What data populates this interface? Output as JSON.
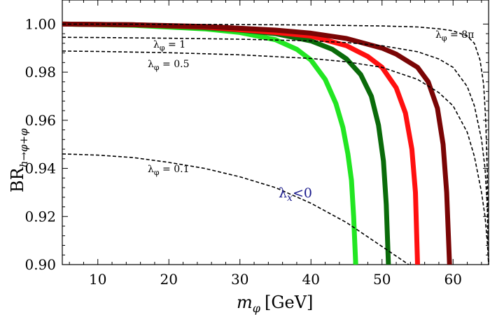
{
  "chart_data": {
    "type": "line",
    "xlabel_symbol": "m",
    "xlabel_sub": "φ",
    "xlabel_unit": "[GeV]",
    "ylabel_main": "BR",
    "ylabel_sub": "h→φ+φ",
    "xlim": [
      5,
      65
    ],
    "ylim": [
      0.9,
      1.01
    ],
    "x_ticks": [
      10,
      20,
      30,
      40,
      50,
      60
    ],
    "y_ticks": [
      0.9,
      0.92,
      0.94,
      0.96,
      0.98,
      1.0
    ],
    "x_tick_labels": [
      "10",
      "20",
      "30",
      "40",
      "50",
      "60"
    ],
    "y_tick_labels": [
      "0.90",
      "0.92",
      "0.94",
      "0.96",
      "0.98",
      "1.00"
    ],
    "annotation": {
      "text_main": "λ",
      "text_sub": "x",
      "text_rest": "<0",
      "color": "#1a1a8c"
    },
    "series": [
      {
        "label_main": "λ",
        "label_sub": "φ",
        "label_rest": " = 8π",
        "style": "dashed",
        "color": "#000000",
        "x": [
          5,
          10,
          20,
          30,
          40,
          50,
          55,
          58,
          60,
          62,
          63,
          63.8,
          64.3,
          64.6,
          64.8,
          65
        ],
        "y": [
          1.0,
          1.0,
          0.9999,
          0.9998,
          0.9996,
          0.9992,
          0.9988,
          0.998,
          0.9972,
          0.995,
          0.992,
          0.985,
          0.975,
          0.96,
          0.94,
          0.9
        ]
      },
      {
        "label_main": "λ",
        "label_sub": "φ",
        "label_rest": " = 1",
        "style": "dashed",
        "color": "#000000",
        "x": [
          5,
          10,
          20,
          30,
          40,
          45,
          50,
          55,
          58,
          60,
          62,
          63,
          64,
          64.5,
          64.8,
          65
        ],
        "y": [
          0.9945,
          0.9944,
          0.9941,
          0.9937,
          0.993,
          0.9923,
          0.991,
          0.9885,
          0.9855,
          0.982,
          0.974,
          0.966,
          0.952,
          0.94,
          0.925,
          0.9
        ]
      },
      {
        "label_main": "λ",
        "label_sub": "φ",
        "label_rest": " = 0.5",
        "style": "dashed",
        "color": "#000000",
        "x": [
          5,
          10,
          20,
          30,
          40,
          45,
          50,
          55,
          58,
          60,
          62,
          63,
          64,
          64.5,
          64.8,
          65
        ],
        "y": [
          0.9888,
          0.9886,
          0.9881,
          0.9872,
          0.9857,
          0.9843,
          0.982,
          0.977,
          0.9715,
          0.966,
          0.955,
          0.945,
          0.93,
          0.92,
          0.91,
          0.9
        ]
      },
      {
        "label_main": "λ",
        "label_sub": "φ",
        "label_rest": " = 0.1",
        "style": "dashed",
        "color": "#000000",
        "x": [
          5,
          10,
          15,
          20,
          25,
          30,
          35,
          40,
          45,
          50,
          53,
          55
        ],
        "y": [
          0.946,
          0.9455,
          0.9445,
          0.9425,
          0.94,
          0.9365,
          0.932,
          0.9255,
          0.9175,
          0.9075,
          0.9015,
          0.8975
        ]
      },
      {
        "label": "",
        "style": "band",
        "color": "#22e622",
        "x": [
          5,
          15,
          25,
          30,
          35,
          38,
          40,
          42,
          43.5,
          44.5,
          45.2,
          45.7,
          46.0,
          46.3
        ],
        "y": [
          1.0,
          0.9995,
          0.998,
          0.9965,
          0.9935,
          0.9895,
          0.985,
          0.977,
          0.967,
          0.957,
          0.946,
          0.935,
          0.92,
          0.9
        ]
      },
      {
        "label": "",
        "style": "band",
        "color": "#0a6b0a",
        "x": [
          5,
          15,
          25,
          30,
          35,
          40,
          43,
          45,
          47,
          48.5,
          49.5,
          50.2,
          50.6,
          50.9
        ],
        "y": [
          1.0,
          0.9997,
          0.9985,
          0.9975,
          0.996,
          0.993,
          0.9895,
          0.9855,
          0.979,
          0.97,
          0.958,
          0.943,
          0.925,
          0.9
        ]
      },
      {
        "label": "",
        "style": "band",
        "color": "#ff1010",
        "x": [
          5,
          15,
          25,
          35,
          40,
          45,
          48,
          50,
          52,
          53.3,
          54.2,
          54.7,
          55.0
        ],
        "y": [
          1.0,
          0.9997,
          0.9988,
          0.9965,
          0.995,
          0.991,
          0.9865,
          0.982,
          0.9735,
          0.963,
          0.948,
          0.93,
          0.9
        ]
      },
      {
        "label": "",
        "style": "band",
        "color": "#7a0505",
        "x": [
          5,
          15,
          25,
          35,
          40,
          45,
          50,
          52,
          55,
          56.5,
          57.8,
          58.6,
          59.1,
          59.5
        ],
        "y": [
          1.0,
          0.9997,
          0.999,
          0.9975,
          0.9962,
          0.994,
          0.99,
          0.9875,
          0.982,
          0.976,
          0.965,
          0.95,
          0.93,
          0.9
        ]
      }
    ]
  }
}
